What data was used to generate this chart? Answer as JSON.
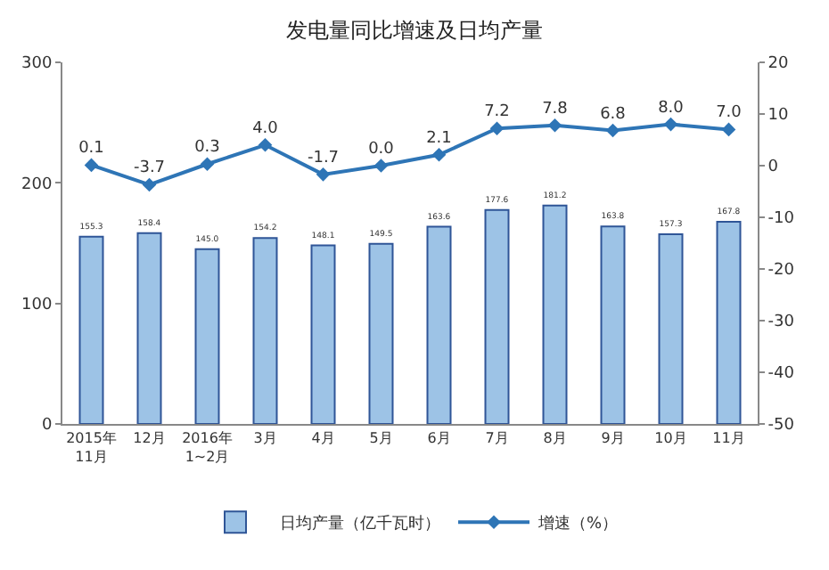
{
  "chart_data": {
    "type": "bar",
    "title": "发电量同比增速及日均产量",
    "categories": [
      "2015年\n11月",
      "12月",
      "2016年\n1~2月",
      "3月",
      "4月",
      "5月",
      "6月",
      "7月",
      "8月",
      "9月",
      "10月",
      "11月"
    ],
    "series": [
      {
        "name": "日均产量（亿千瓦时）",
        "color": "#9dc3e6",
        "values": [
          155.3,
          158.4,
          145.0,
          154.2,
          148.1,
          149.5,
          163.6,
          177.6,
          181.2,
          163.8,
          157.3,
          167.8
        ],
        "value_labels": [
          "155.3",
          "158.4",
          "145.0",
          "154.2",
          "148.1",
          "149.5",
          "163.6",
          "177.6",
          "181.2",
          "163.8",
          "157.3",
          "167.8"
        ]
      },
      {
        "name": "增速（%）",
        "type": "line",
        "axis": "y2",
        "color": "#2e75b6",
        "marker": "diamond",
        "values": [
          0.1,
          -3.7,
          0.3,
          4.0,
          -1.7,
          0.0,
          2.1,
          7.2,
          7.8,
          6.8,
          8.0,
          7.0
        ],
        "value_labels": [
          "0.1",
          "-3.7",
          "0.3",
          "4.0",
          "-1.7",
          "0.0",
          "2.1",
          "7.2",
          "7.8",
          "6.8",
          "8.0",
          "7.0"
        ]
      }
    ],
    "ylim": [
      0,
      300
    ],
    "yticks": [
      0,
      100,
      200,
      300
    ],
    "y2lim": [
      -50,
      20
    ],
    "y2ticks": [
      -50,
      -40,
      -30,
      -20,
      -10,
      0,
      10,
      20
    ],
    "legend": "bottom"
  }
}
